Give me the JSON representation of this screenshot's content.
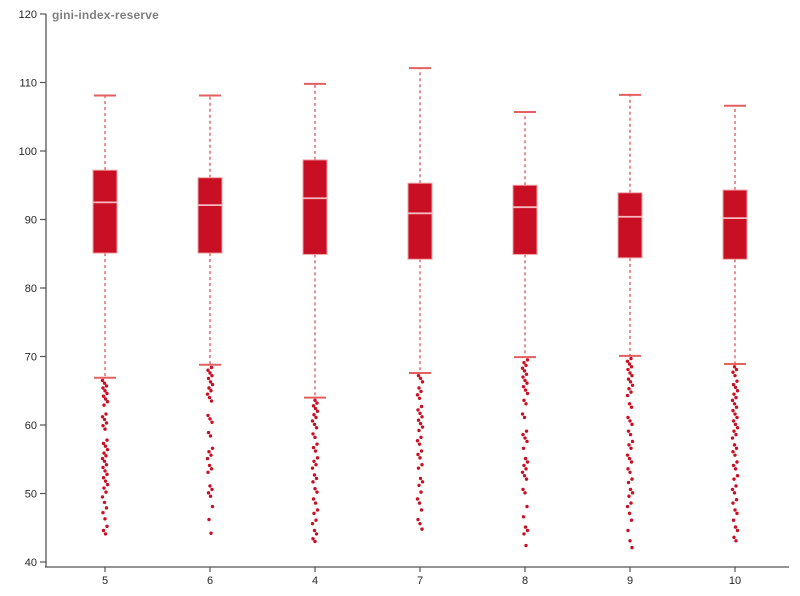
{
  "chart_data": {
    "type": "box",
    "title": "gini-index-reserve",
    "xlabel": "",
    "ylabel": "",
    "ylim": [
      40,
      120
    ],
    "y_ticks": [
      40,
      50,
      60,
      70,
      80,
      90,
      100,
      110,
      120
    ],
    "grid": false,
    "legend": "none",
    "categories": [
      "5",
      "6",
      "4",
      "7",
      "8",
      "9",
      "10"
    ],
    "series": [
      {
        "category": "5",
        "whisker_high": 108.1,
        "q3": 97.2,
        "median": 92.5,
        "q1": 85.1,
        "whisker_low": 66.9,
        "outliers": [
          66.5,
          66.1,
          65.7,
          65.4,
          65.0,
          64.6,
          64.2,
          63.8,
          63.4,
          62.9,
          61.6,
          61.2,
          60.8,
          60.3,
          59.9,
          59.4,
          57.8,
          57.3,
          56.9,
          56.4,
          55.9,
          55.5,
          55.1,
          54.7,
          54.2,
          53.8,
          53.3,
          52.8,
          52.3,
          51.8,
          51.3,
          50.8,
          50.2,
          49.5,
          48.7,
          47.9,
          47.2,
          46.3,
          45.2,
          44.6,
          44.1
        ]
      },
      {
        "category": "6",
        "whisker_high": 108.1,
        "q3": 96.1,
        "median": 92.1,
        "q1": 85.1,
        "whisker_low": 68.8,
        "outliers": [
          68.4,
          68.0,
          67.6,
          67.2,
          66.8,
          66.3,
          65.9,
          65.4,
          65.0,
          64.5,
          64.0,
          63.5,
          61.4,
          60.9,
          60.4,
          58.9,
          58.4,
          56.6,
          56.1,
          55.6,
          55.1,
          54.1,
          53.6,
          53.1,
          51.1,
          50.6,
          50.1,
          49.6,
          48.1,
          46.2,
          44.2
        ]
      },
      {
        "category": "4",
        "whisker_high": 109.8,
        "q3": 98.7,
        "median": 93.1,
        "q1": 84.9,
        "whisker_low": 64.0,
        "outliers": [
          63.6,
          63.2,
          62.8,
          62.4,
          62.0,
          61.5,
          61.1,
          60.6,
          60.1,
          59.6,
          58.7,
          58.2,
          57.2,
          56.7,
          56.2,
          55.2,
          54.7,
          54.2,
          53.7,
          52.7,
          52.2,
          51.7,
          50.7,
          50.2,
          49.2,
          48.6,
          47.6,
          47.1,
          46.1,
          45.6,
          44.6,
          44.1,
          43.4,
          43.0
        ]
      },
      {
        "category": "7",
        "whisker_high": 112.1,
        "q3": 95.3,
        "median": 90.9,
        "q1": 84.2,
        "whisker_low": 67.6,
        "outliers": [
          67.2,
          66.8,
          66.3,
          65.4,
          64.9,
          64.4,
          63.9,
          62.7,
          62.2,
          61.7,
          61.2,
          60.7,
          60.2,
          59.7,
          59.2,
          58.2,
          57.7,
          57.2,
          56.2,
          55.7,
          55.2,
          54.2,
          53.7,
          52.2,
          51.7,
          51.2,
          50.2,
          49.2,
          48.6,
          47.6,
          46.2,
          45.6,
          44.8
        ]
      },
      {
        "category": "8",
        "whisker_high": 105.7,
        "q3": 95.0,
        "median": 91.8,
        "q1": 84.9,
        "whisker_low": 69.9,
        "outliers": [
          69.5,
          69.1,
          68.7,
          68.3,
          67.9,
          67.4,
          67.0,
          66.5,
          66.1,
          65.6,
          65.1,
          64.6,
          63.6,
          63.1,
          61.6,
          61.1,
          59.1,
          58.6,
          58.1,
          57.6,
          56.6,
          55.1,
          54.6,
          54.1,
          53.6,
          53.1,
          52.6,
          52.1,
          50.6,
          50.1,
          48.1,
          46.6,
          45.1,
          44.6,
          44.1,
          42.4
        ]
      },
      {
        "category": "9",
        "whisker_high": 108.2,
        "q3": 93.9,
        "median": 90.4,
        "q1": 84.4,
        "whisker_low": 70.1,
        "outliers": [
          69.7,
          69.3,
          68.9,
          68.5,
          68.1,
          67.6,
          67.2,
          66.7,
          66.3,
          65.8,
          65.3,
          64.8,
          64.3,
          63.1,
          62.6,
          61.1,
          60.6,
          60.1,
          59.1,
          58.6,
          57.6,
          57.1,
          56.6,
          55.6,
          55.1,
          54.6,
          53.6,
          53.1,
          52.1,
          51.6,
          50.6,
          50.1,
          49.6,
          48.6,
          48.1,
          47.1,
          46.1,
          44.6,
          43.1,
          42.1
        ]
      },
      {
        "category": "10",
        "whisker_high": 106.6,
        "q3": 94.3,
        "median": 90.2,
        "q1": 84.2,
        "whisker_low": 68.9,
        "outliers": [
          68.5,
          68.1,
          67.7,
          67.2,
          66.4,
          65.9,
          65.5,
          65.0,
          64.5,
          64.0,
          63.6,
          63.1,
          62.6,
          62.1,
          61.6,
          61.1,
          60.6,
          60.1,
          59.6,
          59.1,
          58.6,
          58.1,
          57.1,
          56.6,
          56.1,
          55.6,
          54.6,
          54.1,
          53.6,
          52.6,
          52.1,
          51.1,
          50.6,
          50.1,
          49.1,
          48.6,
          47.6,
          47.1,
          46.1,
          45.1,
          44.6,
          43.6,
          43.1
        ]
      }
    ],
    "colors": {
      "box_fill": "#c90f23",
      "box_edge": "#efa2a6",
      "median_line": "#f4babd",
      "whisker": "#e26060",
      "outlier": "#c90f23",
      "axis_line": "#555555",
      "tick_text": "#262626",
      "title_text": "#7f7f7f"
    }
  }
}
